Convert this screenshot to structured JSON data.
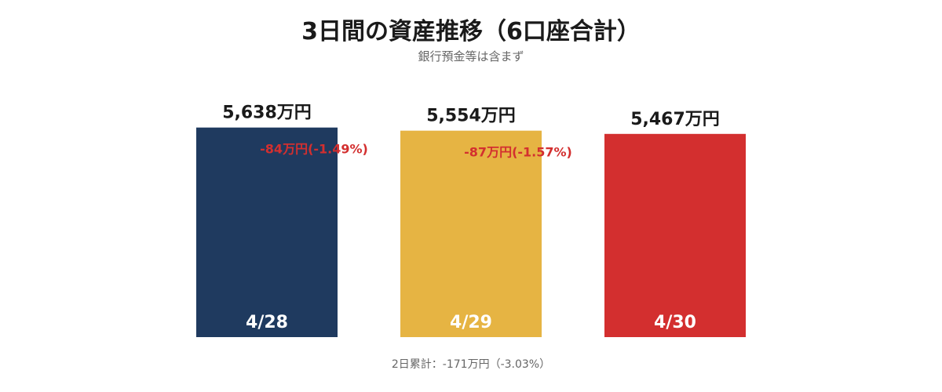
{
  "chart_data": {
    "type": "bar",
    "title": "3日間の資産推移（6口座合計）",
    "subtitle": "銀行預金等は含まず",
    "unit": "万円",
    "categories": [
      "4/28",
      "4/29",
      "4/30"
    ],
    "values": [
      5638,
      5554,
      5467
    ],
    "value_labels": [
      "5,638万円",
      "5,554万円",
      "5,467万円"
    ],
    "bar_colors": [
      "#1f3a5f",
      "#e6b443",
      "#d32f2f"
    ],
    "changes": [
      {
        "from": "4/28",
        "to": "4/29",
        "value": -84,
        "percent": -1.49,
        "label": "-84万円(-1.49%)"
      },
      {
        "from": "4/29",
        "to": "4/30",
        "value": -87,
        "percent": -1.57,
        "label": "-87万円(-1.57%)"
      }
    ],
    "change_color": "#d32f2f",
    "cumulative_label": "2日累計：-171万円（-3.03%）",
    "ylim": [
      0,
      5800
    ],
    "grid": false,
    "legend": "none"
  }
}
